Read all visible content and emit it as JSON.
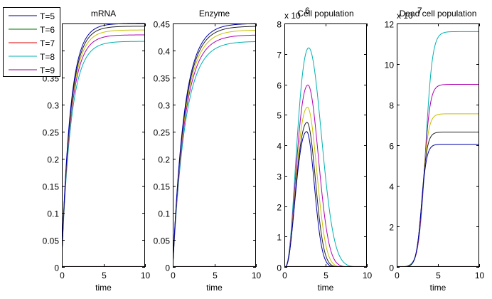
{
  "chart_data": [
    {
      "type": "line",
      "title": "mRNA",
      "xlabel": "time",
      "ylabel": "",
      "xlim": [
        0,
        10
      ],
      "ylim": [
        0,
        0.45
      ],
      "xticks": [
        0,
        5,
        10
      ],
      "yticks": [
        0,
        0.05,
        0.1,
        0.15,
        0.2,
        0.25,
        0.3,
        0.35,
        0.4,
        0.45
      ],
      "ytick_labels": [
        "0",
        "0.05",
        "0.1",
        "0.15",
        "0.2",
        "0.25",
        "0.3",
        "0.35",
        "0.4",
        "0.45"
      ],
      "xtick_labels": [
        "0",
        "5",
        "10"
      ],
      "exponent_label": "",
      "curve_model": "saturating",
      "start": 0.02,
      "series": [
        {
          "name": "blue",
          "color": "#0000aa",
          "final": 0.45,
          "rate": 0.95
        },
        {
          "name": "black",
          "color": "#202020",
          "final": 0.445,
          "rate": 0.93
        },
        {
          "name": "yellow",
          "color": "#c8c000",
          "final": 0.438,
          "rate": 0.92
        },
        {
          "name": "magenta",
          "color": "#b000b0",
          "final": 0.429,
          "rate": 0.91
        },
        {
          "name": "cyan",
          "color": "#00b0b0",
          "final": 0.417,
          "rate": 0.88
        },
        {
          "name": "red-baseline",
          "color": "#e00000",
          "final": 0.0,
          "rate": 1.0,
          "flat": true
        }
      ]
    },
    {
      "type": "line",
      "title": "Enzyme",
      "xlabel": "time",
      "ylabel": "",
      "xlim": [
        0,
        10
      ],
      "ylim": [
        0,
        0.45
      ],
      "xticks": [
        0,
        5,
        10
      ],
      "yticks": [
        0,
        0.05,
        0.1,
        0.15,
        0.2,
        0.25,
        0.3,
        0.35,
        0.4,
        0.45
      ],
      "ytick_labels": [
        "0",
        "0.05",
        "0.1",
        "0.15",
        "0.2",
        "0.25",
        "0.3",
        "0.35",
        "0.4",
        "0.45"
      ],
      "xtick_labels": [
        "0",
        "5",
        "10"
      ],
      "exponent_label": "",
      "curve_model": "saturating",
      "start": 0.0,
      "series": [
        {
          "name": "blue",
          "color": "#0000aa",
          "final": 0.45,
          "rate": 0.72
        },
        {
          "name": "black",
          "color": "#202020",
          "final": 0.445,
          "rate": 0.71
        },
        {
          "name": "yellow",
          "color": "#c8c000",
          "final": 0.438,
          "rate": 0.7
        },
        {
          "name": "magenta",
          "color": "#b000b0",
          "final": 0.429,
          "rate": 0.69
        },
        {
          "name": "cyan",
          "color": "#00b0b0",
          "final": 0.417,
          "rate": 0.67
        },
        {
          "name": "red-baseline",
          "color": "#e00000",
          "final": 0.0,
          "rate": 1.0,
          "flat": true
        }
      ]
    },
    {
      "type": "line",
      "title": "Cell population",
      "xlabel": "time",
      "ylabel": "",
      "xlim": [
        0,
        10
      ],
      "ylim": [
        0,
        8
      ],
      "xticks": [
        0,
        5,
        10
      ],
      "yticks": [
        0,
        1,
        2,
        3,
        4,
        5,
        6,
        7,
        8
      ],
      "ytick_labels": [
        "0",
        "1",
        "2",
        "3",
        "4",
        "5",
        "6",
        "7",
        "8"
      ],
      "xtick_labels": [
        "0",
        "5",
        "10"
      ],
      "exponent_label": "x 10",
      "exponent_power": "6",
      "curve_model": "peak",
      "series": [
        {
          "name": "blue",
          "color": "#0000aa",
          "peak": 4.45,
          "peak_t": 2.7,
          "decay": 1.25
        },
        {
          "name": "black",
          "color": "#202020",
          "peak": 4.75,
          "peak_t": 2.75,
          "decay": 1.35
        },
        {
          "name": "yellow",
          "color": "#c8c000",
          "peak": 5.25,
          "peak_t": 2.8,
          "decay": 1.5
        },
        {
          "name": "magenta",
          "color": "#b000b0",
          "peak": 5.98,
          "peak_t": 2.85,
          "decay": 1.7
        },
        {
          "name": "cyan",
          "color": "#00b0b0",
          "peak": 7.2,
          "peak_t": 2.95,
          "decay": 2.05
        },
        {
          "name": "red-baseline",
          "color": "#e00000",
          "peak": 0,
          "peak_t": 3,
          "decay": 1,
          "flat": true
        }
      ]
    },
    {
      "type": "line",
      "title": "Dead cell population",
      "xlabel": "time",
      "ylabel": "",
      "xlim": [
        0,
        10
      ],
      "ylim": [
        0,
        12
      ],
      "xticks": [
        0,
        5,
        10
      ],
      "yticks": [
        0,
        2,
        4,
        6,
        8,
        10,
        12
      ],
      "ytick_labels": [
        "0",
        "2",
        "4",
        "6",
        "8",
        "10",
        "12"
      ],
      "xtick_labels": [
        "0",
        "5",
        "10"
      ],
      "exponent_label": "x 10",
      "exponent_power": "7",
      "curve_model": "sigmoid",
      "series": [
        {
          "name": "blue",
          "color": "#0000aa",
          "final": 6.05,
          "mid": 3.0,
          "width": 0.6
        },
        {
          "name": "black",
          "color": "#202020",
          "final": 6.65,
          "mid": 3.05,
          "width": 0.62
        },
        {
          "name": "yellow",
          "color": "#c8c000",
          "final": 7.55,
          "mid": 3.15,
          "width": 0.66
        },
        {
          "name": "magenta",
          "color": "#b000b0",
          "final": 9.0,
          "mid": 3.3,
          "width": 0.7
        },
        {
          "name": "cyan",
          "color": "#00b0b0",
          "final": 11.6,
          "mid": 3.5,
          "width": 0.78
        },
        {
          "name": "red-baseline",
          "color": "#e00000",
          "final": 0,
          "mid": 3,
          "width": 1,
          "flat": true
        }
      ]
    }
  ],
  "legend": {
    "placement": "top-left",
    "entries": [
      {
        "label": "T=5",
        "color": "#000080"
      },
      {
        "label": "T=6",
        "color": "#007000"
      },
      {
        "label": "T=7",
        "color": "#e00000"
      },
      {
        "label": "T=8",
        "color": "#00b0b0"
      },
      {
        "label": "T=9",
        "color": "#900090"
      }
    ]
  }
}
